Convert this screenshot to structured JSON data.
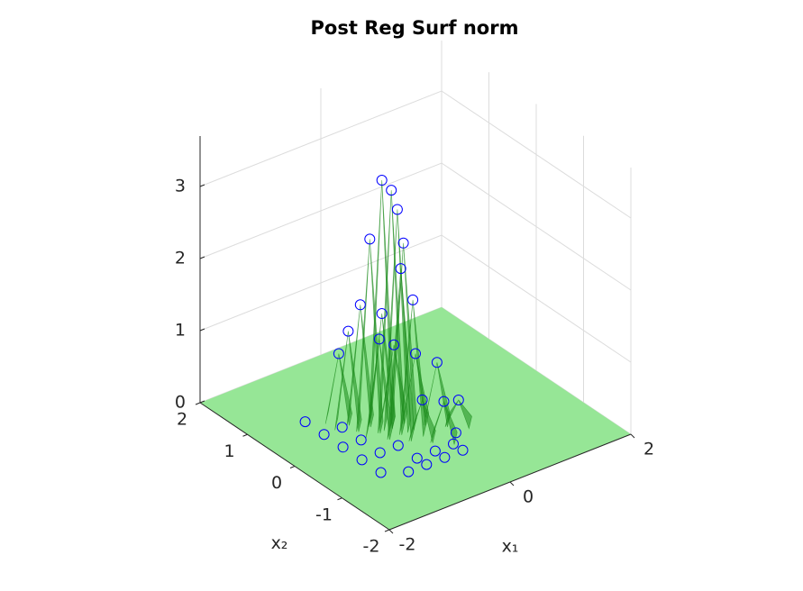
{
  "chart_data": {
    "type": "surface3d",
    "title": "Post Reg Surf norm",
    "xlabel": "x₁",
    "ylabel": "x₂",
    "xlim": [
      -2,
      2
    ],
    "ylim": [
      -2,
      2
    ],
    "zlim": [
      0,
      3.7
    ],
    "xticks": [
      -2,
      0,
      2
    ],
    "yticks": [
      -2,
      -1,
      0,
      1,
      2
    ],
    "zticks": [
      0,
      1,
      2,
      3
    ],
    "grid": true,
    "floor_color": "#96e696",
    "surface_color": "#1e8c1e",
    "marker_color": "#0000ff",
    "points": {
      "x": [
        -0.4,
        -0.4,
        -0.3,
        -0.6,
        -0.2,
        -0.6,
        -0.4,
        -0.2,
        -0.8,
        -0.6,
        -0.4,
        -0.2,
        0.0,
        -0.8,
        -0.2,
        0.2,
        0.4,
        0.0,
        -1.2,
        -1.2,
        -1.2,
        -1.2,
        -1.2,
        -0.9,
        -0.6,
        -0.3,
        0.0,
        -0.9,
        -0.9,
        -0.9,
        -0.6,
        -0.6,
        -0.3,
        0.0,
        0.2
      ],
      "y": [
        0.2,
        0.0,
        0.0,
        0.2,
        0.0,
        0.4,
        -0.2,
        -0.2,
        0.4,
        0.0,
        0.2,
        0.2,
        0.0,
        0.6,
        -0.4,
        -0.2,
        -0.4,
        -0.6,
        0.8,
        0.4,
        0.0,
        -0.4,
        -0.8,
        -1.0,
        -1.0,
        -1.0,
        -1.0,
        0.4,
        0.0,
        -0.4,
        -0.4,
        -0.8,
        -0.8,
        -0.8,
        -0.6
      ],
      "z": [
        3.35,
        3.3,
        3.0,
        2.6,
        2.5,
        1.6,
        2.3,
        1.8,
        1.3,
        1.3,
        1.5,
        1.0,
        0.9,
        0.9,
        0.5,
        0.8,
        0.3,
        0.5,
        0,
        0,
        0,
        0,
        0,
        0,
        0,
        0,
        0,
        0,
        0,
        0,
        0,
        0,
        0,
        0,
        0
      ]
    }
  }
}
